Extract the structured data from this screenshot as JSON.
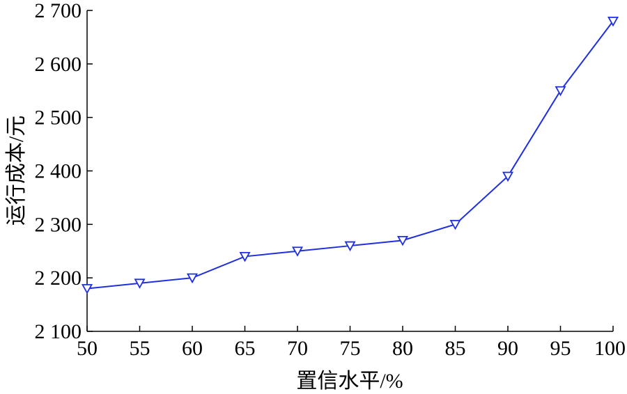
{
  "chart_data": {
    "type": "line",
    "title": "",
    "xlabel": "置信水平/%",
    "ylabel": "运行成本/元",
    "x": [
      50,
      55,
      60,
      65,
      70,
      75,
      80,
      85,
      90,
      95,
      100
    ],
    "series": [
      {
        "values": [
          2180,
          2190,
          2200,
          2240,
          2250,
          2260,
          2270,
          2300,
          2390,
          2550,
          2680
        ],
        "color": "#1f2fe0",
        "marker": "triangle-down"
      }
    ],
    "xlim": [
      50,
      100
    ],
    "ylim": [
      2100,
      2700
    ],
    "xticks": [
      50,
      55,
      60,
      65,
      70,
      75,
      80,
      85,
      90,
      95,
      100
    ],
    "xtick_labels": [
      "50",
      "55",
      "60",
      "65",
      "70",
      "75",
      "80",
      "85",
      "90",
      "95",
      "100"
    ],
    "yticks": [
      2100,
      2200,
      2300,
      2400,
      2500,
      2600,
      2700
    ],
    "ytick_labels": [
      "2 100",
      "2 200",
      "2 300",
      "2 400",
      "2 500",
      "2 600",
      "2 700"
    ],
    "grid": false,
    "legend": "none"
  }
}
